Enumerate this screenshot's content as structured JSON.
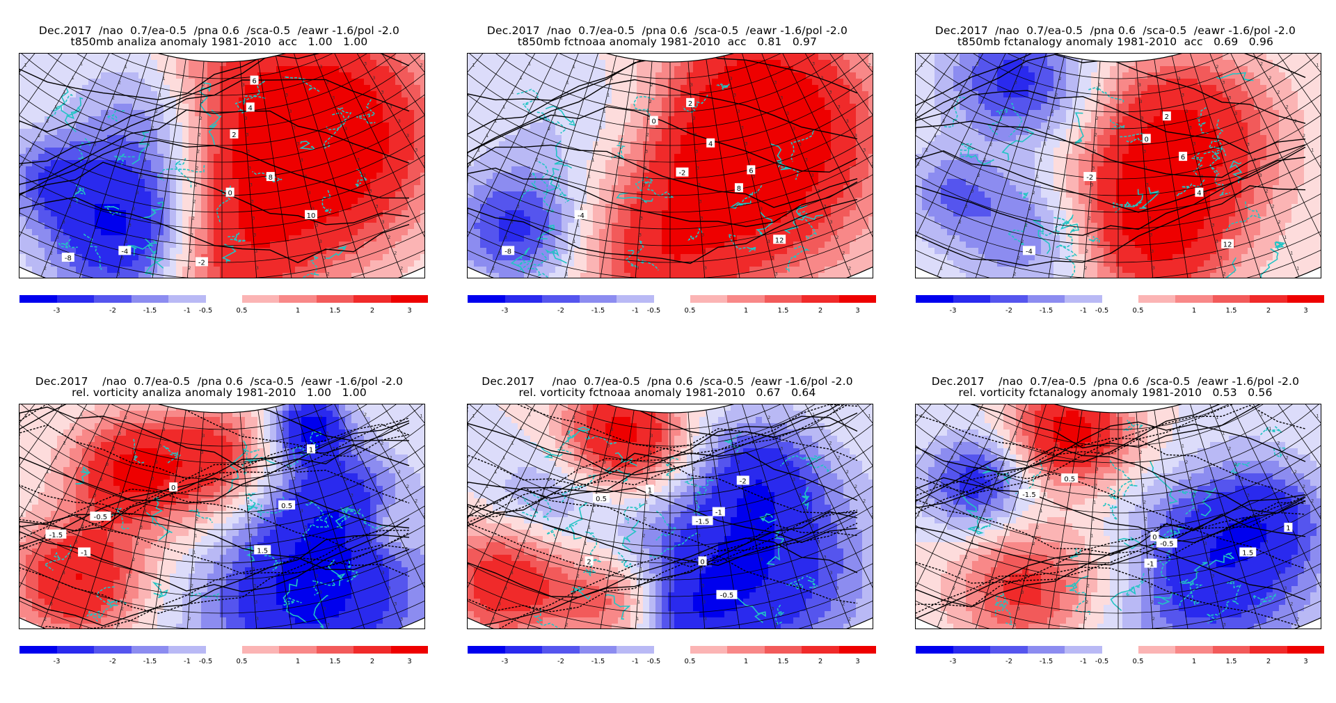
{
  "panels": [
    {
      "title_line1": "Dec.2017  /nao  0.7/ea-0.5  /pna 0.6  /sca-0.5  /eawr -1.6/pol -2.0",
      "title_line2": "t850mb analiza anomaly 1981-2010  acc   1.00   1.00",
      "field": "t850mb",
      "contour_labels": [
        "-8",
        "-4",
        "-2",
        "0",
        "2",
        "4",
        "6",
        "8",
        "10"
      ]
    },
    {
      "title_line1": "Dec.2017  /nao  0.7/ea-0.5  /pna 0.6  /sca-0.5  /eawr -1.6/pol -2.0",
      "title_line2": "t850mb fctnoaa anomaly 1981-2010  acc   0.81   0.97",
      "field": "t850mb",
      "contour_labels": [
        "-8",
        "-4",
        "-2",
        "0",
        "2",
        "4",
        "6",
        "8",
        "12"
      ]
    },
    {
      "title_line1": "Dec.2017  /nao  0.7/ea-0.5  /pna 0.6  /sca-0.5  /eawr -1.6/pol -2.0",
      "title_line2": "t850mb fctanalogy anomaly 1981-2010  acc   0.69   0.96",
      "field": "t850mb",
      "contour_labels": [
        "-4",
        "-2",
        "0",
        "2",
        "4",
        "6",
        "12"
      ]
    },
    {
      "title_line1": "Dec.2017    /nao  0.7/ea-0.5  /pna 0.6  /sca-0.5  /eawr -1.6/pol -2.0",
      "title_line2": "rel. vorticity analiza anomaly 1981-2010   1.00   1.00",
      "field": "vorticity",
      "contour_labels": [
        "-1.5",
        "-1",
        "-0.5",
        "0",
        "0.5",
        "1",
        "1.5"
      ]
    },
    {
      "title_line1": "Dec.2017     /nao  0.7/ea-0.5  /pna 0.6  /sca-0.5  /eawr -1.6/pol -2.0",
      "title_line2": "rel. vorticity fctnoaa anomaly 1981-2010   0.67   0.64",
      "field": "vorticity",
      "contour_labels": [
        "-2",
        "-1.5",
        "-1",
        "-0.5",
        "0",
        "0.5",
        "1",
        "2"
      ]
    },
    {
      "title_line1": "Dec.2017    /nao  0.7/ea-0.5  /pna 0.6  /sca-0.5  /eawr -1.6/pol -2.0",
      "title_line2": "rel. vorticity fctanalogy anomaly 1981-2010   0.53   0.56",
      "field": "vorticity",
      "contour_labels": [
        "-1.5",
        "-1",
        "-0.5",
        "0",
        "0.5",
        "1",
        "1.5"
      ]
    }
  ],
  "colorbar": {
    "ticks": [
      "-3",
      "-2",
      "-1.5",
      "-1",
      "-0.5",
      "0.5",
      "1",
      "1.5",
      "2",
      "3"
    ],
    "colors": [
      "#0000ee",
      "#2a2aee",
      "#5555ee",
      "#8c8cf0",
      "#b9b9f5",
      "#dcdcfa",
      "#fddcdc",
      "#fbb4b4",
      "#f88888",
      "#f25a5a",
      "#f02a2a",
      "#ee0000"
    ]
  }
}
